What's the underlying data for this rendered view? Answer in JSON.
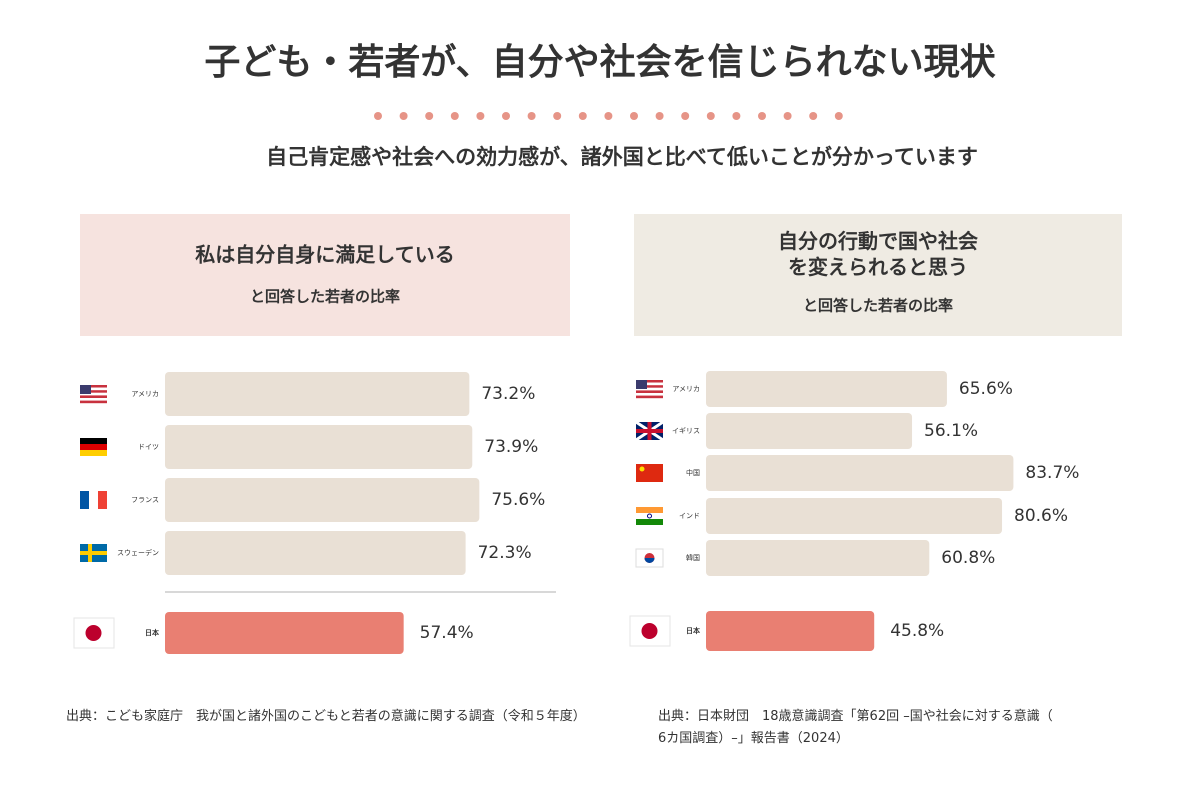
{
  "header": {
    "title": "子ども・若者が、自分や社会を信じられない現状",
    "subtitle": "自己肯定感や社会への効力感が、諸外国と比べて低いことが分かっています"
  },
  "chart_data": [
    {
      "type": "bar",
      "orientation": "horizontal",
      "title": "私は自分自身に満足している",
      "subtitle": "と回答した若者の比率",
      "categories": [
        "アメリカ",
        "ドイツ",
        "フランス",
        "スウェーデン",
        "日本"
      ],
      "values": [
        73.2,
        73.9,
        75.6,
        72.3,
        57.4
      ],
      "value_labels": [
        "73.2%",
        "73.9%",
        "75.6%",
        "72.3%",
        "57.4%"
      ],
      "color": "#e9e0d5",
      "highlight_color": "#e97f72",
      "xlim": [
        0,
        95
      ],
      "source": "出典：こども家庭庁　我が国と諸外国のこどもと若者の意識に関する調査（令和５年度）"
    },
    {
      "type": "bar",
      "orientation": "horizontal",
      "title": "自分の行動で国や社会を変えられると思う",
      "subtitle": "と回答した若者の比率",
      "categories": [
        "アメリカ",
        "イギリス",
        "中国",
        "インド",
        "韓国",
        "日本"
      ],
      "values": [
        65.6,
        56.1,
        83.7,
        80.6,
        60.8,
        45.8
      ],
      "value_labels": [
        "65.6%",
        "56.1%",
        "83.7%",
        "80.6%",
        "60.8%",
        "45.8%"
      ],
      "color": "#e9e0d5",
      "highlight_color": "#e97f72",
      "xlim": [
        0,
        110
      ],
      "source": "出典：日本財団　18歳意識調査「第62回 –国や社会に対する意識（6カ国調査）–」報告書（2024）"
    }
  ]
}
